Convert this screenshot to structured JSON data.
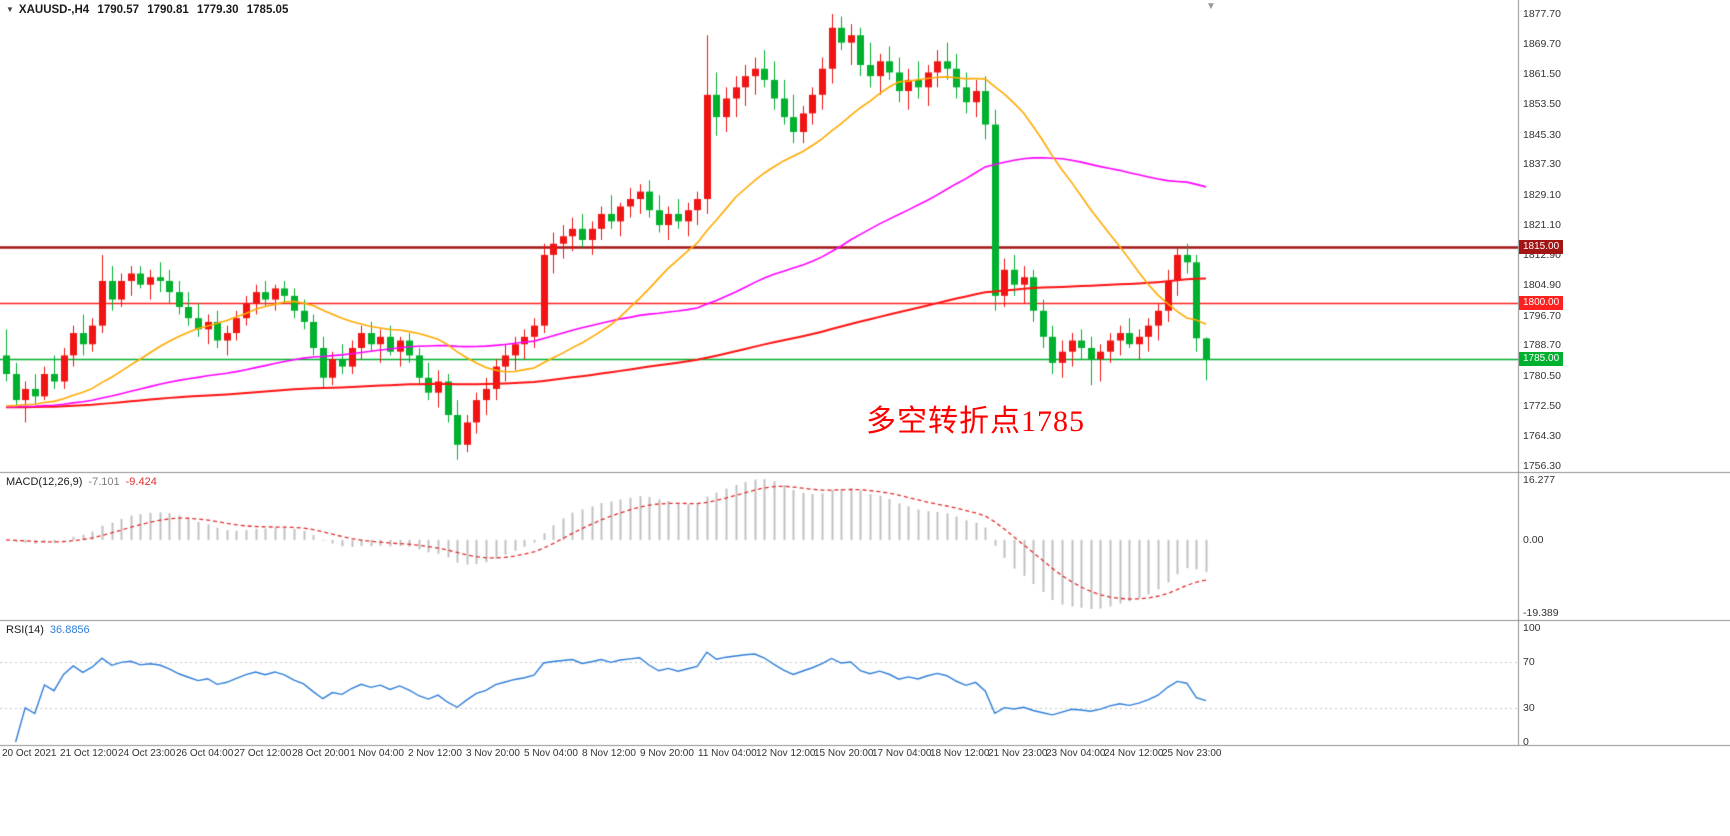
{
  "header": {
    "symbol": "XAUUSD-,H4",
    "open": "1790.57",
    "high": "1790.81",
    "low": "1779.30",
    "close": "1785.05"
  },
  "annotation": {
    "text": "多空转折点1785",
    "color": "#ff0000"
  },
  "colors": {
    "bull": "#f01414",
    "bear": "#00b02f",
    "ma_fast": "#ffaa00",
    "ma_mid": "#ff00ff",
    "ma_slow": "#ff1111",
    "macd_hist": "#c0c0c0",
    "macd_signal": "#e03030",
    "rsi_line": "#2f7ed8",
    "rsi_level": "#c8c8c8",
    "separator": "#909090",
    "axis_text": "#333333"
  },
  "hlines": [
    {
      "price": 1815.0,
      "label": "1815.00",
      "color": "#a31515",
      "width": 2.5
    },
    {
      "price": 1800.0,
      "label": "1800.00",
      "color": "#ff2020",
      "width": 1.5
    },
    {
      "price": 1785.0,
      "label": "1785.00",
      "color": "#00b02f",
      "width": 1.5
    }
  ],
  "price_scale": {
    "ticks": [
      "1877.70",
      "1869.70",
      "1861.50",
      "1853.50",
      "1845.30",
      "1837.30",
      "1829.10",
      "1821.10",
      "1812.90",
      "1804.90",
      "1796.70",
      "1788.70",
      "1780.50",
      "1772.50",
      "1764.30",
      "1756.30"
    ]
  },
  "macd_panel": {
    "label": "MACD(12,26,9)",
    "main_value": "-7.101",
    "signal_value": "-9.424",
    "scale": [
      "16.277",
      "0.00",
      "-19.389"
    ],
    "range": [
      16.277,
      -19.389
    ]
  },
  "rsi_panel": {
    "label": "RSI(14)",
    "value": "36.8856",
    "scale": [
      "100",
      "70",
      "30",
      "0"
    ],
    "levels": [
      70,
      30
    ],
    "period": 14
  },
  "time_axis": {
    "labels": [
      "20 Oct 2021",
      "21 Oct 12:00",
      "24 Oct 23:00",
      "26 Oct 04:00",
      "27 Oct 12:00",
      "28 Oct 20:00",
      "1 Nov 04:00",
      "2 Nov 12:00",
      "3 Nov 20:00",
      "5 Nov 04:00",
      "8 Nov 12:00",
      "9 Nov 20:00",
      "11 Nov 04:00",
      "12 Nov 12:00",
      "15 Nov 20:00",
      "17 Nov 04:00",
      "18 Nov 12:00",
      "21 Nov 23:00",
      "23 Nov 04:00",
      "24 Nov 12:00",
      "25 Nov 23:00"
    ]
  },
  "chart_data": {
    "type": "candlestick",
    "symbol": "XAUUSD",
    "timeframe": "H4",
    "title": "XAUUSD-,H4 1790.57 1790.81 1779.30 1785.05",
    "price_axis": {
      "min": 1756.3,
      "max": 1877.7
    },
    "pre_close": 1772,
    "ma_periods": {
      "fast": 21,
      "mid": 55,
      "slow": 144
    },
    "candles": [
      [
        1786,
        1793,
        1779,
        1781
      ],
      [
        1781,
        1784,
        1772,
        1774
      ],
      [
        1774,
        1779,
        1768,
        1777
      ],
      [
        1777,
        1781,
        1773,
        1775
      ],
      [
        1775,
        1783,
        1774,
        1781
      ],
      [
        1781,
        1786,
        1777,
        1779
      ],
      [
        1779,
        1788,
        1777,
        1786
      ],
      [
        1786,
        1794,
        1783,
        1792
      ],
      [
        1792,
        1797,
        1786,
        1789
      ],
      [
        1789,
        1796,
        1787,
        1794
      ],
      [
        1794,
        1813,
        1792,
        1806
      ],
      [
        1806,
        1810,
        1798,
        1801
      ],
      [
        1801,
        1808,
        1799,
        1806
      ],
      [
        1806,
        1810,
        1802,
        1808
      ],
      [
        1808,
        1810,
        1804,
        1805
      ],
      [
        1805,
        1809,
        1801,
        1807
      ],
      [
        1807,
        1811,
        1803,
        1806
      ],
      [
        1806,
        1809,
        1800,
        1803
      ],
      [
        1803,
        1806,
        1797,
        1799
      ],
      [
        1799,
        1803,
        1794,
        1796
      ],
      [
        1796,
        1800,
        1791,
        1793
      ],
      [
        1793,
        1797,
        1789,
        1795
      ],
      [
        1795,
        1798,
        1788,
        1790
      ],
      [
        1790,
        1794,
        1786,
        1792
      ],
      [
        1792,
        1798,
        1790,
        1796
      ],
      [
        1796,
        1802,
        1794,
        1800
      ],
      [
        1800,
        1805,
        1797,
        1803
      ],
      [
        1803,
        1806,
        1799,
        1801
      ],
      [
        1801,
        1805,
        1798,
        1804
      ],
      [
        1804,
        1806,
        1800,
        1802
      ],
      [
        1802,
        1804,
        1796,
        1798
      ],
      [
        1798,
        1801,
        1793,
        1795
      ],
      [
        1795,
        1797,
        1786,
        1788
      ],
      [
        1788,
        1791,
        1777,
        1780
      ],
      [
        1780,
        1787,
        1778,
        1785
      ],
      [
        1785,
        1789,
        1781,
        1783
      ],
      [
        1783,
        1790,
        1781,
        1788
      ],
      [
        1788,
        1794,
        1785,
        1792
      ],
      [
        1792,
        1795,
        1787,
        1789
      ],
      [
        1789,
        1793,
        1784,
        1791
      ],
      [
        1791,
        1794,
        1786,
        1787
      ],
      [
        1787,
        1791,
        1783,
        1790
      ],
      [
        1790,
        1792,
        1784,
        1786
      ],
      [
        1786,
        1788,
        1778,
        1780
      ],
      [
        1780,
        1784,
        1774,
        1776
      ],
      [
        1776,
        1782,
        1772,
        1779
      ],
      [
        1779,
        1781,
        1768,
        1770
      ],
      [
        1770,
        1774,
        1758,
        1762
      ],
      [
        1762,
        1770,
        1760,
        1768
      ],
      [
        1768,
        1776,
        1765,
        1774
      ],
      [
        1774,
        1780,
        1770,
        1777
      ],
      [
        1777,
        1785,
        1774,
        1783
      ],
      [
        1783,
        1789,
        1779,
        1786
      ],
      [
        1786,
        1791,
        1782,
        1789
      ],
      [
        1789,
        1793,
        1785,
        1791
      ],
      [
        1791,
        1796,
        1788,
        1794
      ],
      [
        1794,
        1816,
        1792,
        1813
      ],
      [
        1813,
        1819,
        1808,
        1816
      ],
      [
        1816,
        1821,
        1812,
        1818
      ],
      [
        1818,
        1823,
        1814,
        1820
      ],
      [
        1820,
        1824,
        1815,
        1817
      ],
      [
        1817,
        1822,
        1813,
        1820
      ],
      [
        1820,
        1826,
        1817,
        1824
      ],
      [
        1824,
        1829,
        1820,
        1822
      ],
      [
        1822,
        1827,
        1818,
        1826
      ],
      [
        1826,
        1831,
        1823,
        1828
      ],
      [
        1828,
        1832,
        1824,
        1830
      ],
      [
        1830,
        1833,
        1823,
        1825
      ],
      [
        1825,
        1829,
        1819,
        1821
      ],
      [
        1821,
        1826,
        1817,
        1824
      ],
      [
        1824,
        1828,
        1820,
        1822
      ],
      [
        1822,
        1827,
        1818,
        1825
      ],
      [
        1825,
        1830,
        1821,
        1828
      ],
      [
        1828,
        1872,
        1824,
        1856
      ],
      [
        1856,
        1862,
        1845,
        1850
      ],
      [
        1850,
        1858,
        1846,
        1855
      ],
      [
        1855,
        1861,
        1850,
        1858
      ],
      [
        1858,
        1864,
        1853,
        1861
      ],
      [
        1861,
        1866,
        1856,
        1863
      ],
      [
        1863,
        1868,
        1858,
        1860
      ],
      [
        1860,
        1865,
        1852,
        1855
      ],
      [
        1855,
        1860,
        1848,
        1850
      ],
      [
        1850,
        1856,
        1843,
        1846
      ],
      [
        1846,
        1853,
        1843,
        1851
      ],
      [
        1851,
        1858,
        1848,
        1856
      ],
      [
        1856,
        1866,
        1852,
        1863
      ],
      [
        1863,
        1877.7,
        1859,
        1874
      ],
      [
        1874,
        1877,
        1868,
        1870
      ],
      [
        1870,
        1875,
        1864,
        1872
      ],
      [
        1872,
        1874,
        1861,
        1864
      ],
      [
        1864,
        1870,
        1858,
        1861
      ],
      [
        1861,
        1867,
        1856,
        1865
      ],
      [
        1865,
        1869,
        1860,
        1862
      ],
      [
        1862,
        1866,
        1854,
        1857
      ],
      [
        1857,
        1863,
        1852,
        1860
      ],
      [
        1860,
        1865,
        1855,
        1858
      ],
      [
        1858,
        1864,
        1853,
        1862
      ],
      [
        1862,
        1868,
        1858,
        1865
      ],
      [
        1865,
        1870,
        1860,
        1863
      ],
      [
        1863,
        1867,
        1855,
        1858
      ],
      [
        1858,
        1862,
        1851,
        1854
      ],
      [
        1854,
        1860,
        1850,
        1857
      ],
      [
        1857,
        1861,
        1844,
        1848
      ],
      [
        1848,
        1852,
        1798,
        1802
      ],
      [
        1802,
        1812,
        1799,
        1809
      ],
      [
        1809,
        1813,
        1802,
        1805
      ],
      [
        1805,
        1810,
        1800,
        1807
      ],
      [
        1807,
        1809,
        1795,
        1798
      ],
      [
        1798,
        1801,
        1788,
        1791
      ],
      [
        1791,
        1794,
        1781,
        1784
      ],
      [
        1784,
        1790,
        1780,
        1787
      ],
      [
        1787,
        1792,
        1783,
        1790
      ],
      [
        1790,
        1793,
        1785,
        1788
      ],
      [
        1788,
        1791,
        1778,
        1785
      ],
      [
        1785,
        1789,
        1779,
        1787
      ],
      [
        1787,
        1792,
        1784,
        1790
      ],
      [
        1790,
        1794,
        1786,
        1792
      ],
      [
        1792,
        1796,
        1788,
        1789
      ],
      [
        1789,
        1793,
        1785,
        1791
      ],
      [
        1791,
        1796,
        1787,
        1794
      ],
      [
        1794,
        1800,
        1790,
        1798
      ],
      [
        1798,
        1809,
        1795,
        1806
      ],
      [
        1806,
        1815,
        1802,
        1813
      ],
      [
        1813,
        1816,
        1808,
        1811
      ],
      [
        1811,
        1813,
        1787,
        1790.6
      ],
      [
        1790.57,
        1790.81,
        1779.3,
        1785.05
      ]
    ]
  }
}
